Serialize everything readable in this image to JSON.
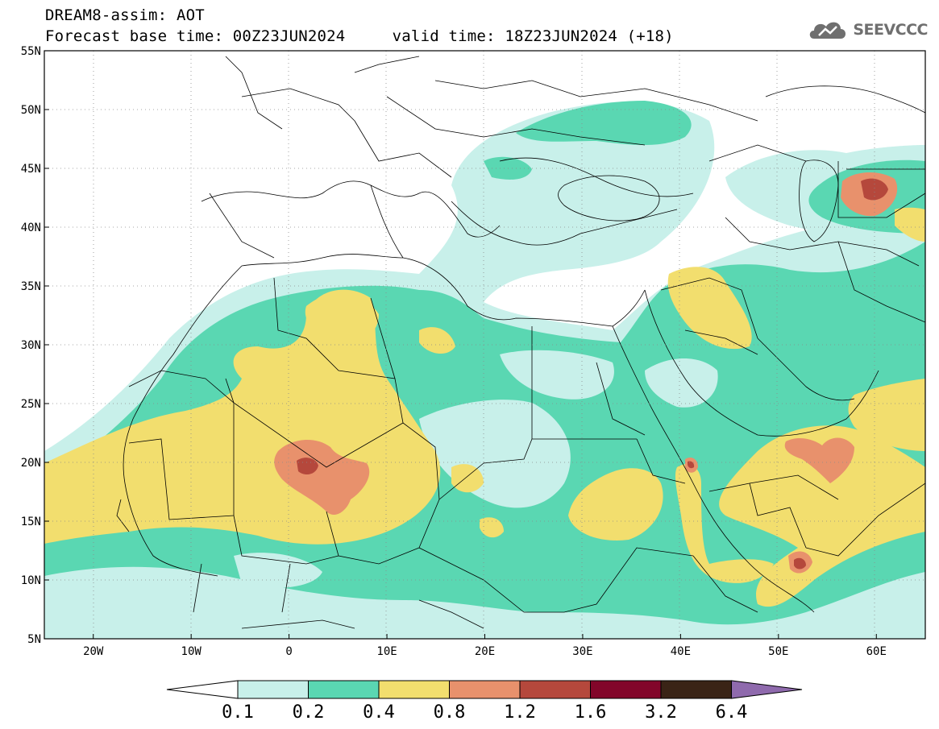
{
  "header": {
    "title": "DREAM8-assim: AOT",
    "base_time_label": "Forecast base time: 00Z23JUN2024",
    "valid_time_label": "valid time: 18Z23JUN2024 (+18)",
    "logo_text": "SEEVCCC"
  },
  "map": {
    "lat_labels": [
      "55N",
      "50N",
      "45N",
      "40N",
      "35N",
      "30N",
      "25N",
      "20N",
      "15N",
      "10N",
      "5N"
    ],
    "lon_labels": [
      "20W",
      "10W",
      "0",
      "10E",
      "20E",
      "30E",
      "40E",
      "50E",
      "60E"
    ],
    "lat_values": [
      55,
      50,
      45,
      40,
      35,
      30,
      25,
      20,
      15,
      10,
      5
    ],
    "lon_values": [
      -20,
      -10,
      0,
      10,
      20,
      30,
      40,
      50,
      60
    ],
    "lon_range": [
      -25,
      65
    ],
    "lat_range": [
      5,
      55
    ]
  },
  "colorbar": {
    "levels": [
      "0.1",
      "0.2",
      "0.4",
      "0.8",
      "1.2",
      "1.6",
      "3.2",
      "6.4"
    ],
    "colors": [
      "#ffffff",
      "#c8f0ea",
      "#5ad7b2",
      "#f2de6e",
      "#e8916c",
      "#b5483c",
      "#82062a",
      "#3a2416",
      "#8f6aad"
    ]
  },
  "colors": {
    "c1": "#c8f0ea",
    "c2": "#5ad7b2",
    "c3": "#f2de6e",
    "c4": "#e8916c",
    "c5": "#b5483c",
    "c6": "#82062a"
  }
}
